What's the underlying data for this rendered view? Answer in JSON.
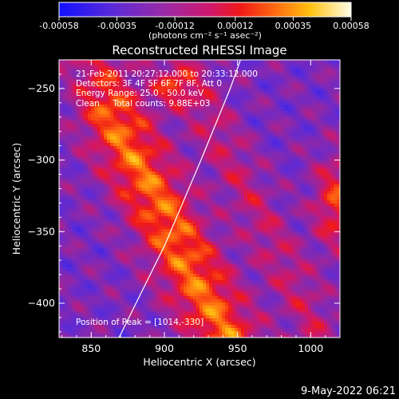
{
  "colorbar": {
    "tick_labels": [
      "-0.00058",
      "-0.00035",
      "-0.00012",
      "0.00012",
      "0.00035",
      "0.00058"
    ],
    "tick_values": [
      -0.00058,
      -0.00035,
      -0.00012,
      0.00012,
      0.00035,
      0.00058
    ],
    "range": [
      -0.00058,
      0.00058
    ],
    "unit_label": "(photons cm⁻² s⁻¹ asec⁻²)"
  },
  "annotations": {
    "time": "21-Feb-2011 20:27:12.000 to 20:33:12.000",
    "detectors": "Detectors: 3F 4F 5F 6F 7F 8F, Att 0",
    "energy": "Energy Range: 25.0 - 50.0 keV",
    "clean": "Clean     Total counts: 9.88E+03",
    "peak": "Position of Peak = [1014,-330]"
  },
  "footer_date": "9-May-2022 06:21",
  "chart_data": {
    "type": "heatmap",
    "title": "Reconstructed RHESSI Image",
    "xlabel": "Heliocentric X (arcsec)",
    "ylabel": "Heliocentric Y (arcsec)",
    "xlim": [
      828,
      1020
    ],
    "ylim": [
      -424,
      -230
    ],
    "x_ticks": [
      850,
      900,
      950,
      1000
    ],
    "y_ticks": [
      -250,
      -300,
      -350,
      -400
    ],
    "x_tick_labels": [
      "850",
      "900",
      "950",
      "1000"
    ],
    "y_tick_labels": [
      "−250",
      "−300",
      "−350",
      "−400"
    ],
    "colormap": "blue-purple-red-orange-yellow-white",
    "limb_curve": [
      [
        869,
        -424
      ],
      [
        900,
        -360
      ],
      [
        925,
        -300
      ],
      [
        945,
        -250
      ],
      [
        952,
        -230
      ]
    ],
    "peak_position": [
      1014,
      -330
    ]
  }
}
